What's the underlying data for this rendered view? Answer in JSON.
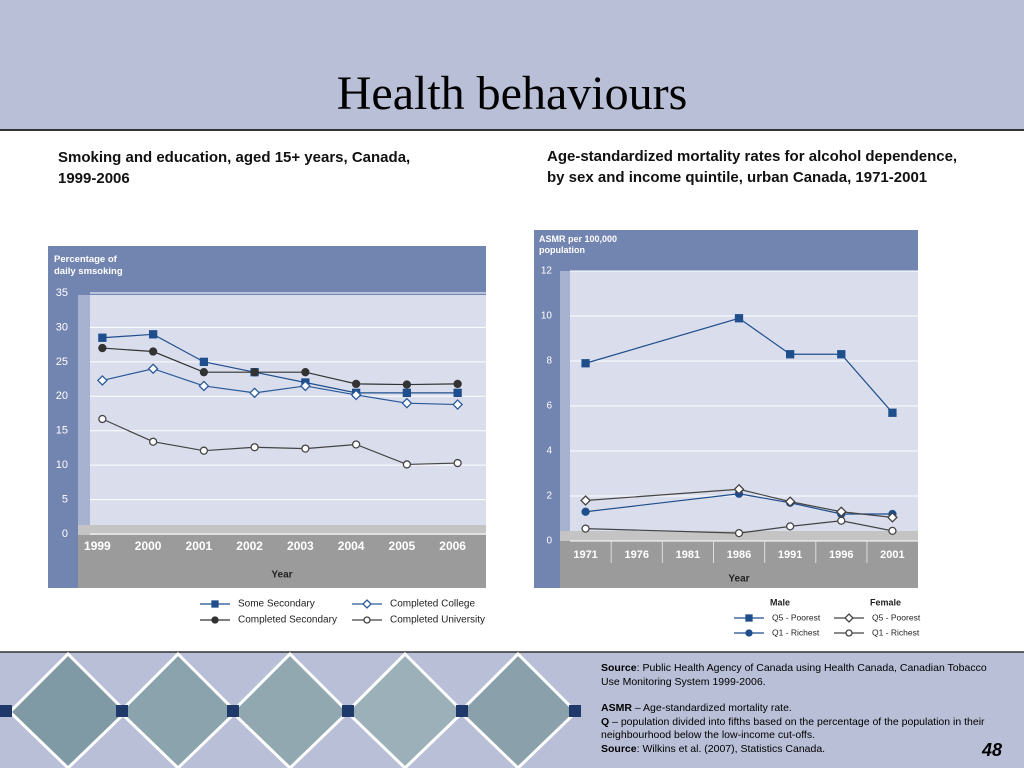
{
  "title": "Health behaviours",
  "chart_data": [
    {
      "type": "line",
      "title": "Smoking and education, aged 15+ years, Canada, 1999-2006",
      "y_label": "Percentage of daily smsoking",
      "x_label": "Year",
      "categories": [
        "1999",
        "2000",
        "2001",
        "2002",
        "2003",
        "2004",
        "2005",
        "2006"
      ],
      "ylim": [
        0,
        35
      ],
      "yticks": [
        0,
        5,
        10,
        15,
        20,
        25,
        30,
        35
      ],
      "grid": true,
      "series": [
        {
          "name": "Some Secondary",
          "color": "#1f4e8c",
          "marker": "square",
          "filled": true,
          "values": [
            28.5,
            29,
            25,
            23.5,
            22,
            20.5,
            20.5,
            20.5
          ]
        },
        {
          "name": "Completed Secondary",
          "color": "#333333",
          "marker": "circle",
          "filled": true,
          "values": [
            27,
            26.5,
            23.5,
            23.5,
            23.5,
            21.8,
            21.7,
            21.8
          ]
        },
        {
          "name": "Completed College",
          "color": "#2a5a9a",
          "marker": "diamond",
          "filled": false,
          "values": [
            22.3,
            24,
            21.5,
            20.5,
            21.5,
            20.2,
            19,
            18.8
          ]
        },
        {
          "name": "Completed University",
          "color": "#444444",
          "marker": "circle",
          "filled": false,
          "values": [
            16.7,
            13.4,
            12.1,
            12.6,
            12.4,
            13,
            10.1,
            10.3
          ]
        }
      ]
    },
    {
      "type": "line",
      "title": "Age-standardized mortality rates for alcohol dependence, by sex and income quintile, urban Canada, 1971-2001",
      "y_label": "ASMR per 100,000 population",
      "x_label": "Year",
      "x": [
        1971,
        1986,
        1991,
        1996,
        2001
      ],
      "xlim": [
        1968.5,
        2003.5
      ],
      "xticks": [
        1971,
        1976,
        1981,
        1986,
        1991,
        1996,
        2001
      ],
      "ylim": [
        0,
        12
      ],
      "yticks": [
        0,
        2,
        4,
        6,
        8,
        10,
        12
      ],
      "grid": true,
      "series_groups": [
        {
          "name": "Male",
          "series": [
            {
              "name": "Q5 - Poorest",
              "color": "#1f4e8c",
              "marker": "square",
              "filled": true,
              "values": [
                7.9,
                9.9,
                8.3,
                8.3,
                5.7
              ]
            },
            {
              "name": "Q1 - Richest",
              "color": "#1f4e8c",
              "marker": "circle",
              "filled": true,
              "values": [
                1.3,
                2.1,
                1.7,
                1.2,
                1.2
              ]
            }
          ]
        },
        {
          "name": "Female",
          "series": [
            {
              "name": "Q5 - Poorest",
              "color": "#444444",
              "marker": "diamond",
              "filled": false,
              "values": [
                1.8,
                2.3,
                1.75,
                1.3,
                1.05
              ]
            },
            {
              "name": "Q1 - Richest",
              "color": "#444444",
              "marker": "circle",
              "filled": false,
              "values": [
                0.55,
                0.35,
                0.65,
                0.9,
                0.45
              ]
            }
          ]
        }
      ]
    }
  ],
  "notes": [
    {
      "label": "Source",
      "text": ": Public Health Agency of Canada using Health Canada, Canadian Tobacco Use Monitoring System 1999-2006."
    },
    {
      "label": "ASMR",
      "text": " – Age-standardized mortality rate."
    },
    {
      "label": "Q",
      "text": " – population divided into fifths based on the percentage of the population in their neighbourhood below the low-income cut-offs."
    },
    {
      "label": "Source",
      "text": ": Wilkins et al. (2007), Statistics Canada."
    }
  ],
  "page_number": 48
}
